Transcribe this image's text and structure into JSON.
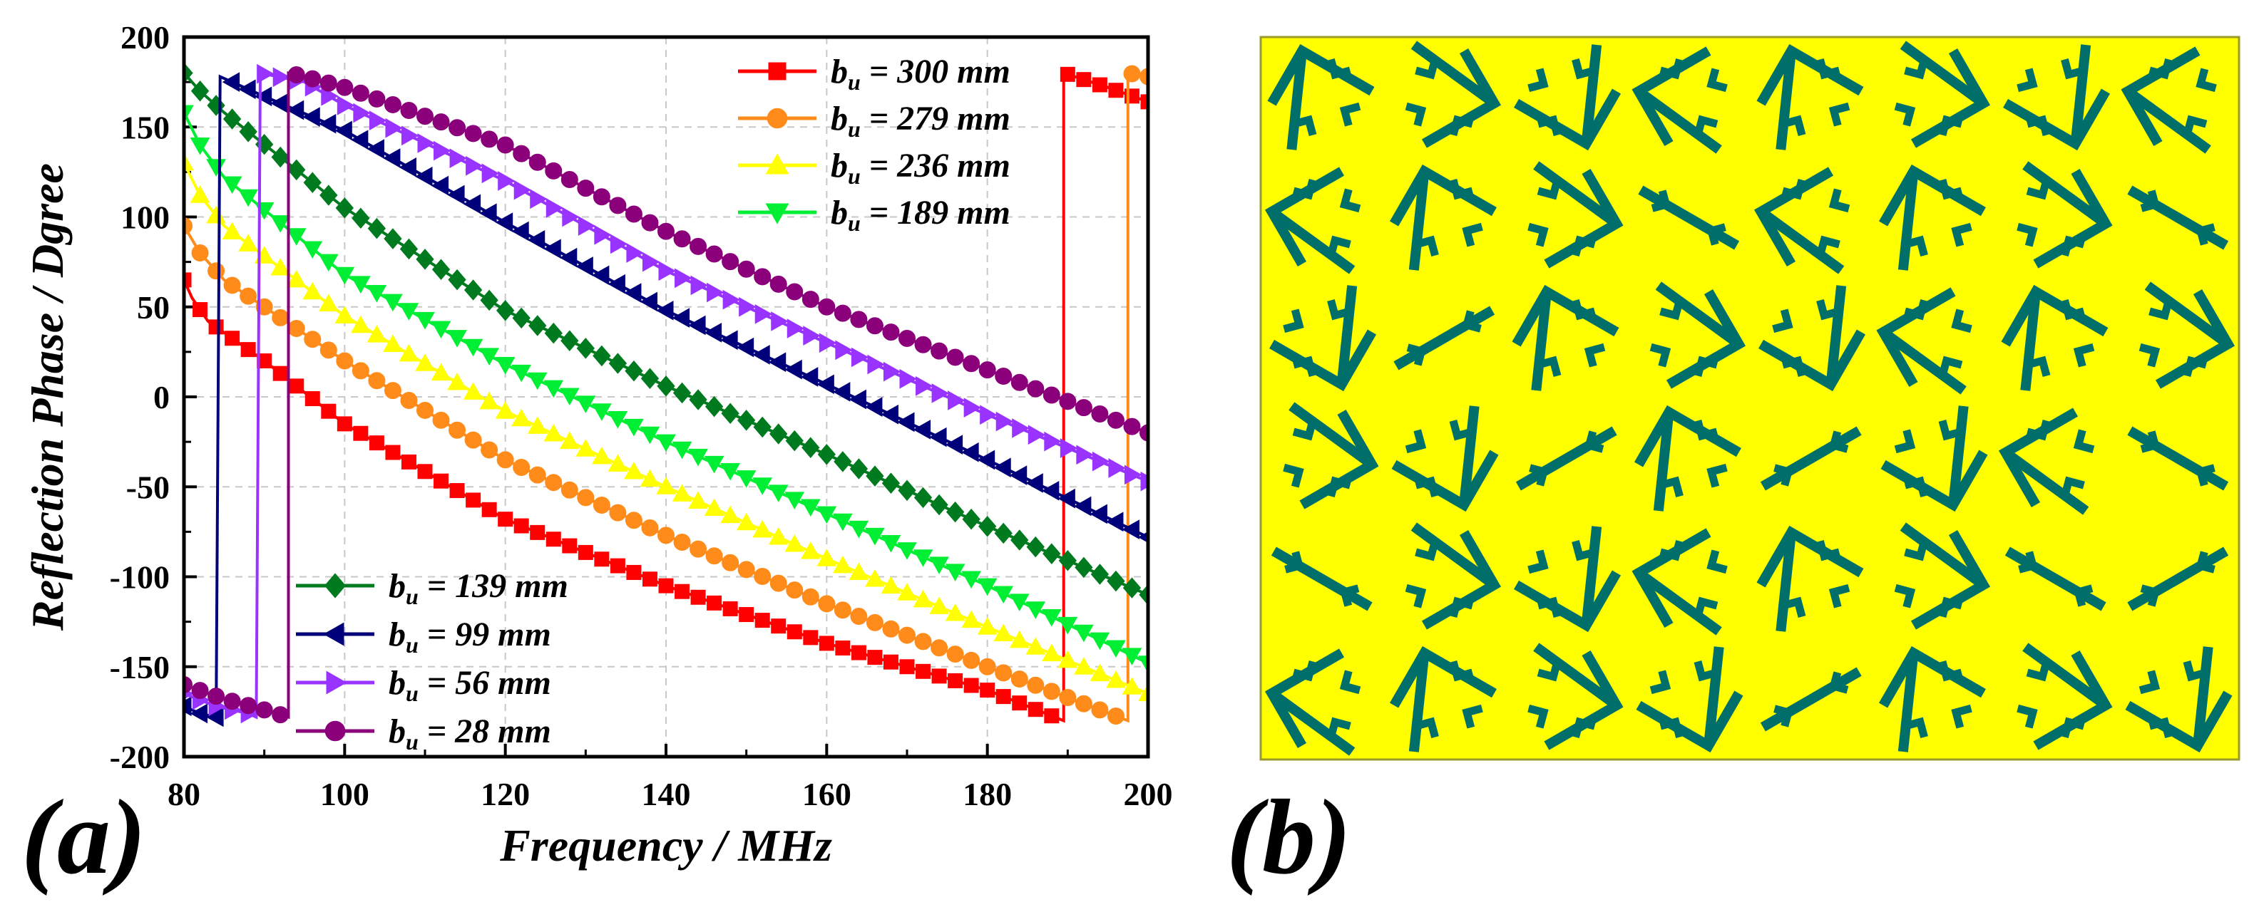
{
  "chart_data": [
    {
      "type": "line",
      "panel_label": "(a)",
      "xlabel": "Frequency / MHz",
      "ylabel": "Reflection Phase / Dgree",
      "xlim": [
        80,
        200
      ],
      "ylim": [
        -200,
        200
      ],
      "xticks": [
        80,
        100,
        120,
        140,
        160,
        180,
        200
      ],
      "yticks": [
        200,
        150,
        100,
        50,
        0,
        -50,
        -100,
        -150,
        -200
      ],
      "grid": true,
      "legend": [
        {
          "placement": "top-right",
          "series": [
            0,
            1,
            2,
            3
          ]
        },
        {
          "placement": "bottom-left",
          "series": [
            4,
            5,
            6,
            7
          ]
        }
      ],
      "series": [
        {
          "name": "b",
          "sub": "u",
          "label_rest": " = 300 mm",
          "color": "#ff0000",
          "marker": "square",
          "points": [
            [
              80,
              65
            ],
            [
              81,
              55
            ],
            [
              83,
              42
            ],
            [
              90,
              20
            ],
            [
              100,
              -15
            ],
            [
              120,
              -68
            ],
            [
              140,
              -105
            ],
            [
              160,
              -137
            ],
            [
              180,
              -163
            ],
            [
              189.5,
              -180
            ],
            [
              189.5,
              180
            ],
            [
              195,
              172
            ],
            [
              200,
              164
            ]
          ]
        },
        {
          "name": "b",
          "sub": "u",
          "label_rest": " = 279 mm",
          "color": "#ff8c1a",
          "marker": "circle",
          "points": [
            [
              80,
              95
            ],
            [
              82,
              80
            ],
            [
              85,
              65
            ],
            [
              100,
              20
            ],
            [
              120,
              -35
            ],
            [
              140,
              -77
            ],
            [
              160,
              -115
            ],
            [
              180,
              -150
            ],
            [
              197.5,
              -180
            ],
            [
              197.5,
              180
            ],
            [
              200,
              178
            ]
          ]
        },
        {
          "name": "b",
          "sub": "u",
          "label_rest": " = 236 mm",
          "color": "#ffff00",
          "marker": "triangle-up",
          "points": [
            [
              80,
              130
            ],
            [
              82,
              112
            ],
            [
              85,
              95
            ],
            [
              100,
              45
            ],
            [
              120,
              -8
            ],
            [
              140,
              -50
            ],
            [
              160,
              -90
            ],
            [
              180,
              -128
            ],
            [
              200,
              -165
            ]
          ]
        },
        {
          "name": "b",
          "sub": "u",
          "label_rest": " = 189 mm",
          "color": "#00ee33",
          "marker": "triangle-down",
          "points": [
            [
              80,
              158
            ],
            [
              82,
              140
            ],
            [
              85,
              122
            ],
            [
              100,
              68
            ],
            [
              120,
              18
            ],
            [
              140,
              -25
            ],
            [
              160,
              -65
            ],
            [
              180,
              -105
            ],
            [
              200,
              -148
            ]
          ]
        },
        {
          "name": "b",
          "sub": "u",
          "label_rest": " = 139 mm",
          "color": "#007a1f",
          "marker": "diamond",
          "points": [
            [
              80,
              180
            ],
            [
              82,
              170
            ],
            [
              85,
              158
            ],
            [
              100,
              105
            ],
            [
              120,
              48
            ],
            [
              140,
              6
            ],
            [
              160,
              -32
            ],
            [
              180,
              -72
            ],
            [
              200,
              -110
            ]
          ]
        },
        {
          "name": "b",
          "sub": "u",
          "label_rest": " = 99 mm",
          "color": "#00007a",
          "marker": "triangle-left",
          "points": [
            [
              80,
              -172
            ],
            [
              82,
              -176
            ],
            [
              84,
              -178
            ],
            [
              84.5,
              178
            ],
            [
              90,
              167
            ],
            [
              100,
              148
            ],
            [
              120,
              97
            ],
            [
              140,
              48
            ],
            [
              160,
              7
            ],
            [
              180,
              -35
            ],
            [
              200,
              -78
            ]
          ]
        },
        {
          "name": "b",
          "sub": "u",
          "label_rest": " = 56 mm",
          "color": "#9933ff",
          "marker": "triangle-right",
          "points": [
            [
              80,
              -165
            ],
            [
              84,
              -172
            ],
            [
              88,
              -176
            ],
            [
              89,
              -178
            ],
            [
              89.5,
              180
            ],
            [
              95,
              175
            ],
            [
              100,
              162
            ],
            [
              120,
              120
            ],
            [
              140,
              70
            ],
            [
              160,
              30
            ],
            [
              180,
              -10
            ],
            [
              200,
              -47
            ]
          ]
        },
        {
          "name": "b",
          "sub": "u",
          "label_rest": " = 28 mm",
          "color": "#8b007a",
          "marker": "circle",
          "points": [
            [
              80,
              -160
            ],
            [
              85,
              -168
            ],
            [
              90,
              -174
            ],
            [
              93,
              -178
            ],
            [
              93,
              180
            ],
            [
              95,
              178
            ],
            [
              100,
              172
            ],
            [
              120,
              140
            ],
            [
              140,
              92
            ],
            [
              160,
              50
            ],
            [
              180,
              15
            ],
            [
              200,
              -20
            ]
          ]
        }
      ]
    },
    {
      "type": "heatmap",
      "panel_label": "(b)",
      "grid_rows": 6,
      "grid_cols": 8,
      "background": "#ffff00",
      "element_color": "#006f6a",
      "pattern": [
        [
          "A",
          "A",
          "A",
          "A",
          "A",
          "A",
          "A",
          "A"
        ],
        [
          "A",
          "A",
          "A",
          "S",
          "A",
          "A",
          "A",
          "S"
        ],
        [
          "A",
          "S",
          "A",
          "A",
          "A",
          "A",
          "A",
          "A"
        ],
        [
          "A",
          "A",
          "S",
          "A",
          "S",
          "A",
          "A",
          "S"
        ],
        [
          "S",
          "A",
          "A",
          "A",
          "A",
          "A",
          "S",
          "S"
        ],
        [
          "A",
          "A",
          "A",
          "A",
          "S",
          "A",
          "A",
          "A"
        ]
      ]
    }
  ]
}
